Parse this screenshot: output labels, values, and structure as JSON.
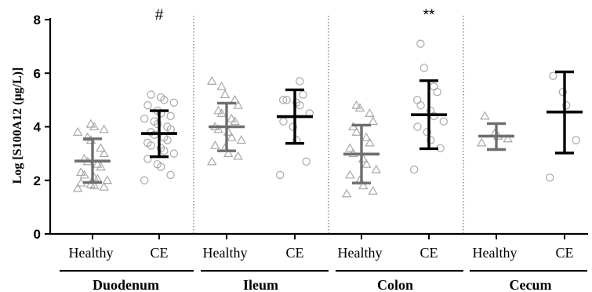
{
  "chart_data": {
    "type": "scatter",
    "ylabel": "Log [S100A12 (μg/L)]",
    "ylim": [
      0,
      8
    ],
    "yticks": [
      "0",
      "2",
      "4",
      "6",
      "8"
    ],
    "colors": {
      "healthy": "#6e6e6e",
      "ce": "#000000",
      "points": "#a8a8a8"
    },
    "segments": [
      {
        "name": "Duodenum",
        "groups": [
          {
            "label": "Healthy",
            "marker": "triangle",
            "mean": 2.72,
            "sd_low": 1.92,
            "sd_high": 3.55,
            "points": [
              1.7,
              1.75,
              1.8,
              1.85,
              1.9,
              2.0,
              2.05,
              2.1,
              2.2,
              2.3,
              2.5,
              2.6,
              2.7,
              2.8,
              3.0,
              3.2,
              3.5,
              3.6,
              3.8,
              3.9,
              4.0,
              4.1
            ]
          },
          {
            "label": "CE",
            "marker": "circle",
            "mean": 3.75,
            "sd_low": 2.88,
            "sd_high": 4.6,
            "points": [
              2.0,
              2.2,
              2.5,
              2.6,
              2.8,
              3.0,
              3.1,
              3.2,
              3.3,
              3.4,
              3.5,
              3.6,
              3.7,
              3.8,
              3.9,
              4.0,
              4.1,
              4.2,
              4.3,
              4.4,
              4.5,
              4.6,
              4.8,
              4.9,
              5.0,
              5.1,
              5.2
            ]
          }
        ]
      },
      {
        "name": "Ileum",
        "groups": [
          {
            "label": "Healthy",
            "marker": "triangle",
            "mean": 4.0,
            "sd_low": 3.1,
            "sd_high": 4.88,
            "points": [
              2.7,
              2.9,
              3.0,
              3.2,
              3.3,
              3.5,
              3.6,
              3.8,
              3.9,
              4.0,
              4.2,
              4.3,
              4.5,
              4.6,
              4.8,
              5.0,
              5.2,
              5.5,
              5.7
            ]
          },
          {
            "label": "CE",
            "marker": "circle",
            "mean": 4.38,
            "sd_low": 3.38,
            "sd_high": 5.38,
            "points": [
              2.2,
              2.7,
              3.5,
              4.0,
              4.2,
              4.5,
              4.8,
              4.9,
              5.0,
              5.0,
              5.2,
              5.7
            ]
          }
        ]
      },
      {
        "name": "Colon",
        "groups": [
          {
            "label": "Healthy",
            "marker": "triangle",
            "mean": 2.98,
            "sd_low": 1.9,
            "sd_high": 4.06,
            "points": [
              1.5,
              1.6,
              1.8,
              2.0,
              2.2,
              2.4,
              2.6,
              2.8,
              3.0,
              3.2,
              3.4,
              3.6,
              3.8,
              4.0,
              4.2,
              4.5,
              4.7,
              4.8
            ]
          },
          {
            "label": "CE",
            "marker": "circle",
            "mean": 4.45,
            "sd_low": 3.18,
            "sd_high": 5.72,
            "points": [
              2.4,
              3.2,
              3.5,
              3.8,
              4.0,
              4.2,
              4.4,
              4.6,
              4.8,
              5.0,
              5.3,
              5.5,
              6.2,
              7.1
            ]
          }
        ]
      },
      {
        "name": "Cecum",
        "groups": [
          {
            "label": "Healthy",
            "marker": "triangle",
            "mean": 3.65,
            "sd_low": 3.15,
            "sd_high": 4.12,
            "points": [
              3.4,
              3.55,
              3.65,
              3.75,
              4.4
            ]
          },
          {
            "label": "CE",
            "marker": "circle",
            "mean": 4.55,
            "sd_low": 3.02,
            "sd_high": 6.05,
            "points": [
              2.1,
              3.5,
              4.8,
              5.3,
              5.9
            ]
          }
        ]
      }
    ],
    "annotations": [
      {
        "text": "#",
        "segment": 0,
        "group": 1
      },
      {
        "text": "**",
        "segment": 2,
        "group": 1
      }
    ]
  }
}
